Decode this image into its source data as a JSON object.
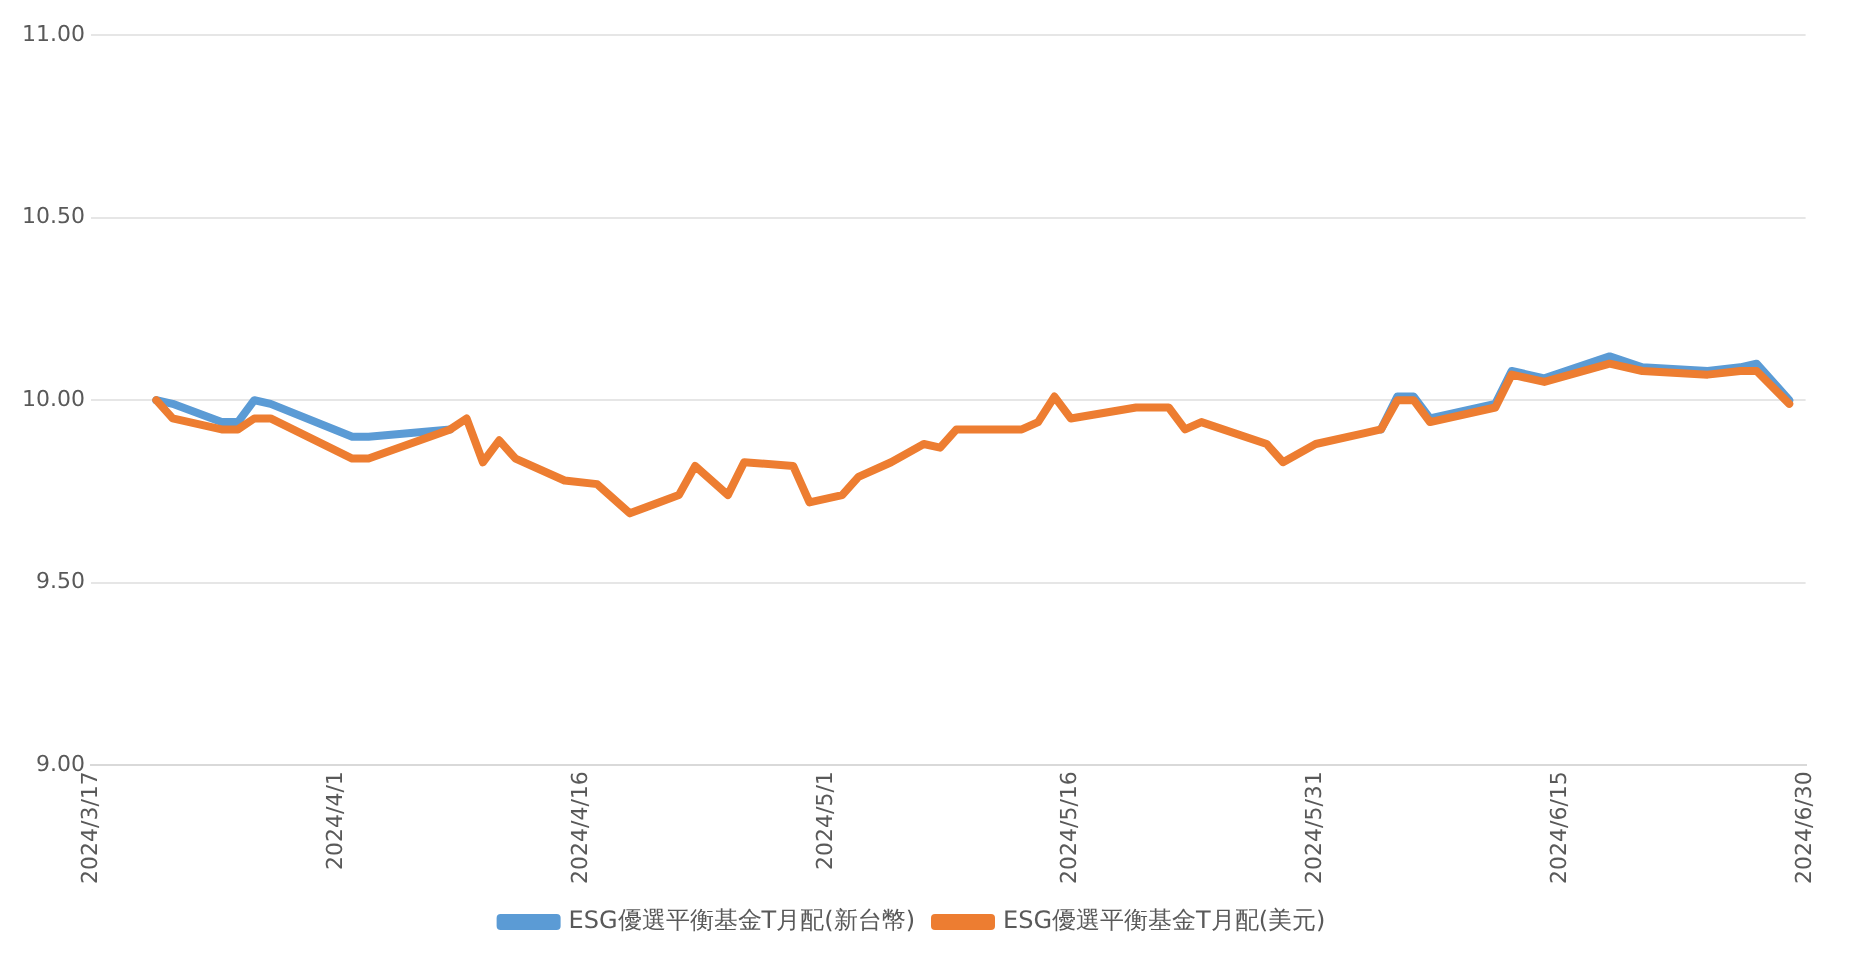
{
  "chart_data": {
    "type": "line",
    "x": [
      "2024-03-21",
      "2024-03-22",
      "2024-03-25",
      "2024-03-26",
      "2024-03-27",
      "2024-03-28",
      "2024-04-02",
      "2024-04-03",
      "2024-04-08",
      "2024-04-09",
      "2024-04-10",
      "2024-04-11",
      "2024-04-12",
      "2024-04-15",
      "2024-04-17",
      "2024-04-19",
      "2024-04-22",
      "2024-04-23",
      "2024-04-24",
      "2024-04-25",
      "2024-04-26",
      "2024-04-29",
      "2024-04-30",
      "2024-05-02",
      "2024-05-03",
      "2024-05-05",
      "2024-05-07",
      "2024-05-08",
      "2024-05-09",
      "2024-05-13",
      "2024-05-14",
      "2024-05-15",
      "2024-05-16",
      "2024-05-20",
      "2024-05-22",
      "2024-05-23",
      "2024-05-24",
      "2024-05-28",
      "2024-05-29",
      "2024-05-31",
      "2024-06-03",
      "2024-06-04",
      "2024-06-05",
      "2024-06-06",
      "2024-06-07",
      "2024-06-11",
      "2024-06-12",
      "2024-06-14",
      "2024-06-18",
      "2024-06-20",
      "2024-06-24",
      "2024-06-26",
      "2024-06-27",
      "2024-06-29"
    ],
    "series": [
      {
        "name": "ESG優選平衡基金T月配(新台幣)",
        "color": "#5b9bd5",
        "values": [
          10.0,
          9.99,
          9.94,
          9.94,
          10.0,
          9.99,
          9.9,
          9.9,
          9.92,
          null,
          null,
          null,
          null,
          null,
          null,
          null,
          null,
          null,
          null,
          null,
          null,
          null,
          null,
          null,
          null,
          null,
          null,
          null,
          null,
          null,
          null,
          null,
          null,
          null,
          null,
          null,
          null,
          null,
          null,
          null,
          null,
          9.92,
          10.01,
          10.01,
          9.95,
          9.99,
          10.08,
          10.06,
          10.12,
          10.09,
          10.08,
          10.09,
          10.1,
          10.0
        ]
      },
      {
        "name": "ESG優選平衡基金T月配(美元)",
        "color": "#ed7d31",
        "values": [
          10.0,
          9.95,
          9.92,
          9.92,
          9.95,
          9.95,
          9.84,
          9.84,
          9.92,
          9.95,
          9.83,
          9.89,
          9.84,
          9.78,
          9.77,
          9.69,
          9.74,
          9.82,
          9.78,
          9.74,
          9.83,
          9.82,
          9.72,
          9.74,
          9.79,
          9.83,
          9.88,
          9.87,
          9.92,
          9.92,
          9.94,
          10.01,
          9.95,
          9.98,
          9.98,
          9.92,
          9.94,
          9.88,
          9.83,
          9.88,
          9.91,
          9.92,
          10.0,
          10.0,
          9.94,
          9.98,
          10.07,
          10.05,
          10.1,
          10.08,
          10.07,
          10.08,
          10.08,
          9.99
        ]
      }
    ],
    "xlim": [
      "2024-03-17",
      "2024-06-30"
    ],
    "xticks": [
      {
        "value": "2024-03-17",
        "label": "2024/3/17"
      },
      {
        "value": "2024-04-01",
        "label": "2024/4/1"
      },
      {
        "value": "2024-04-16",
        "label": "2024/4/16"
      },
      {
        "value": "2024-05-01",
        "label": "2024/5/1"
      },
      {
        "value": "2024-05-16",
        "label": "2024/5/16"
      },
      {
        "value": "2024-05-31",
        "label": "2024/5/31"
      },
      {
        "value": "2024-06-15",
        "label": "2024/6/15"
      },
      {
        "value": "2024-06-30",
        "label": "2024/6/30"
      }
    ],
    "ylim": [
      9,
      11
    ],
    "yticks": [
      {
        "value": 9,
        "label": "9.00"
      },
      {
        "value": 9.5,
        "label": "9.50"
      },
      {
        "value": 10,
        "label": "10.00"
      },
      {
        "value": 10.5,
        "label": "10.50"
      },
      {
        "value": 11,
        "label": "11.00"
      }
    ],
    "grid": "y",
    "legend": "bottom",
    "marker": "none",
    "line_style": "solid"
  }
}
